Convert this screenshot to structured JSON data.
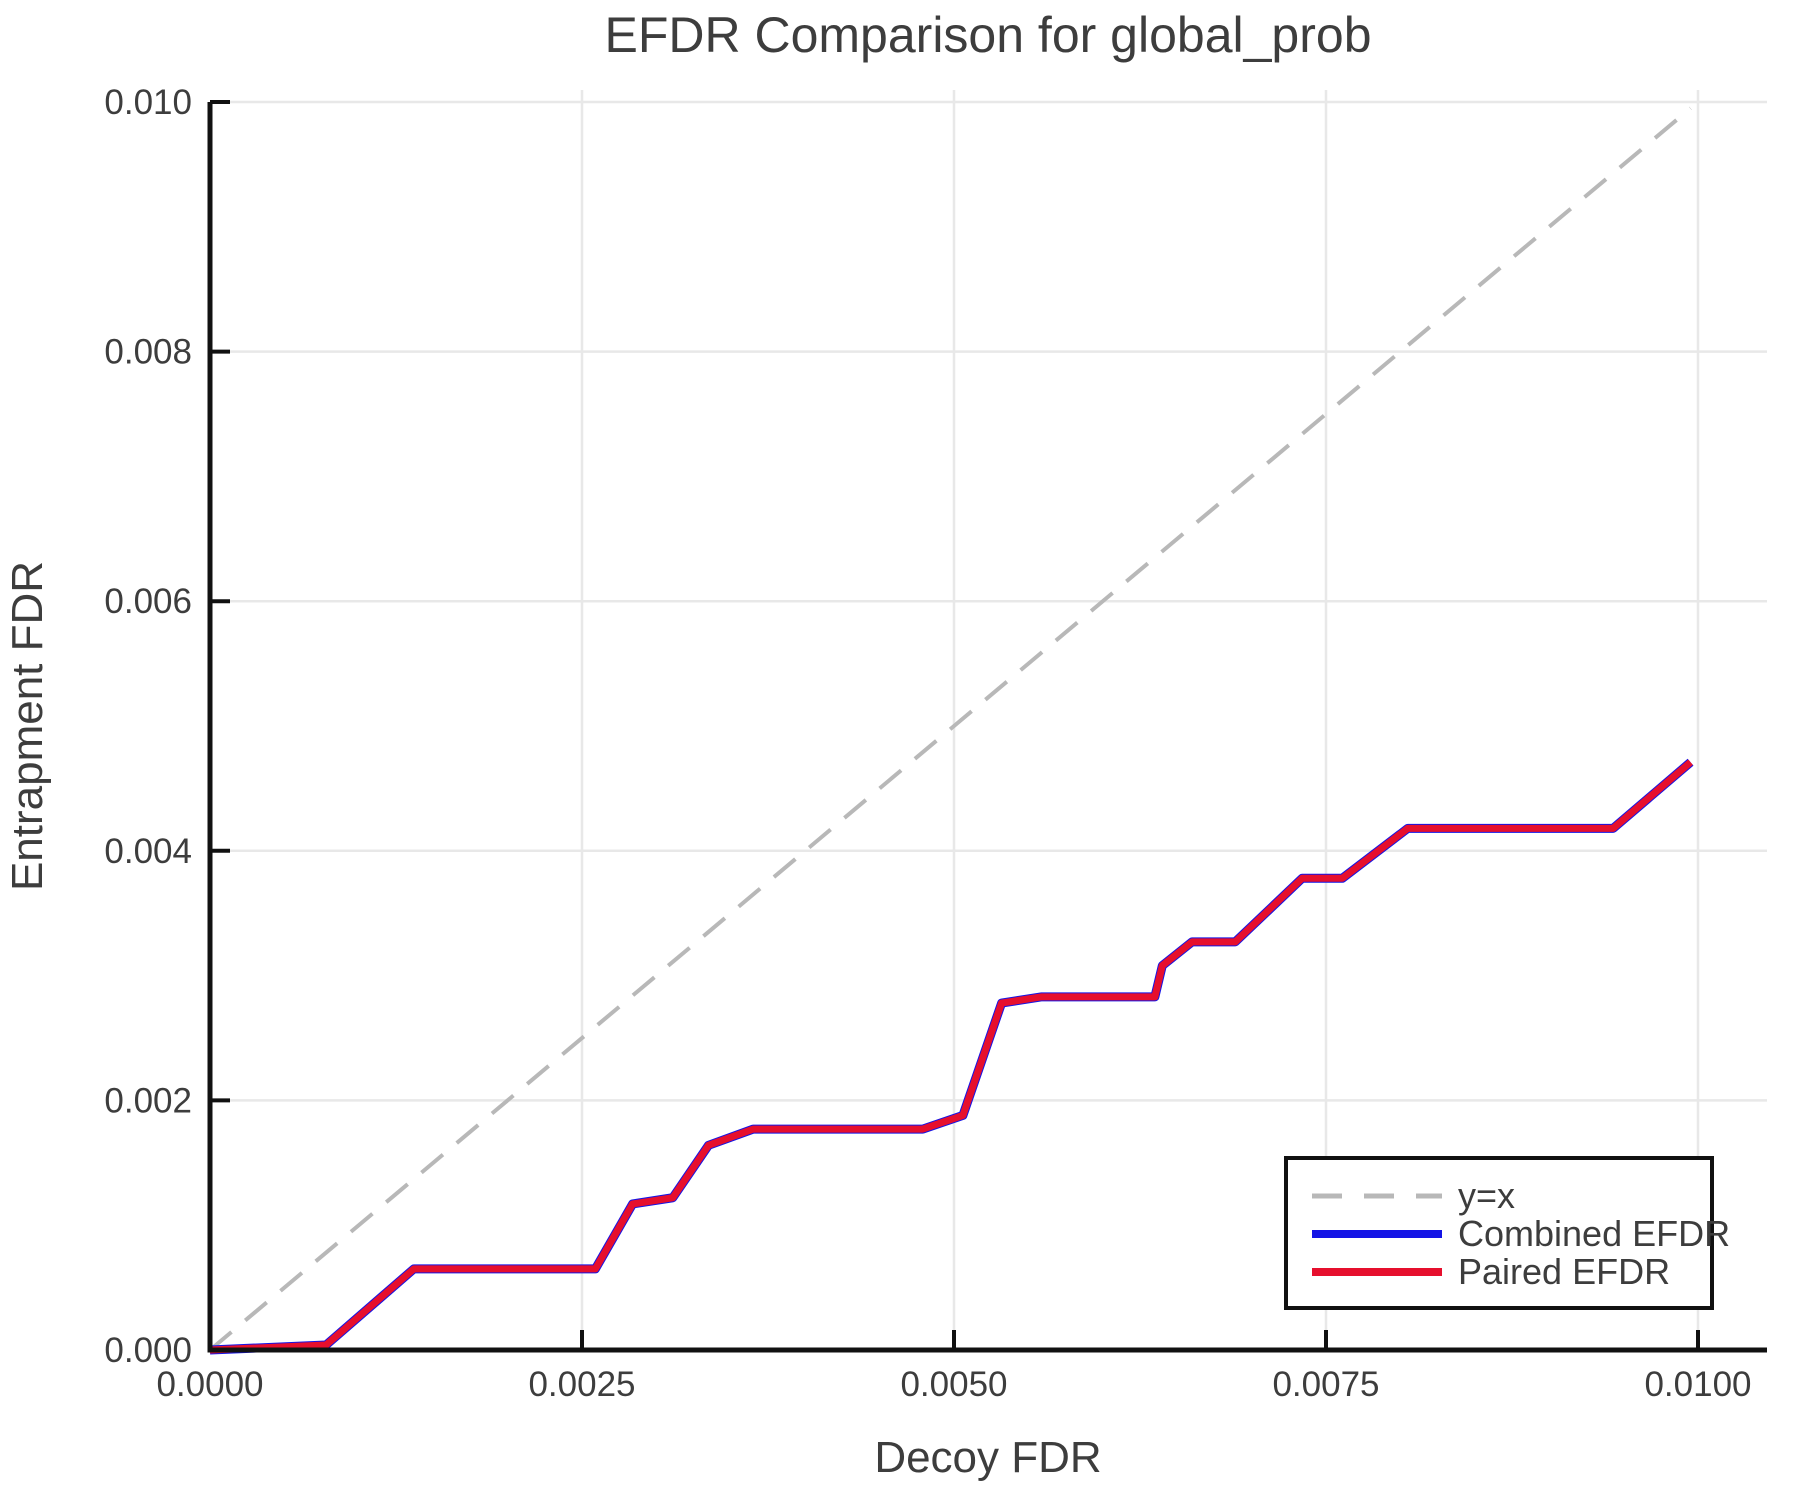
{
  "chart_data": {
    "type": "line",
    "title": "EFDR Comparison for global_prob",
    "xlabel": "Decoy FDR",
    "ylabel": "Entrapment FDR",
    "xlim": [
      0.0,
      0.01047
    ],
    "ylim": [
      0.0,
      0.01
    ],
    "grid": true,
    "legend_position": "lower right",
    "x_ticks": [
      0.0,
      0.0025,
      0.005,
      0.0075,
      0.01
    ],
    "x_tick_labels": [
      "0.0000",
      "0.0025",
      "0.0050",
      "0.0075",
      "0.0100"
    ],
    "y_ticks": [
      0.0,
      0.002,
      0.004,
      0.006,
      0.008,
      0.01
    ],
    "y_tick_labels": [
      "0.000",
      "0.002",
      "0.004",
      "0.006",
      "0.008",
      "0.010"
    ],
    "colors": {
      "identity": "#b8b8b8",
      "combined": "#1414e6",
      "paired": "#e60f2d",
      "grid": "#e8e8e8",
      "axis": "#111111",
      "text": "#3d3d3d"
    },
    "series": [
      {
        "name": "y=x",
        "style": "dashed",
        "color_key": "identity",
        "points": [
          [
            0.0,
            0.0
          ],
          [
            0.00995,
            0.00995
          ]
        ]
      },
      {
        "name": "Combined EFDR",
        "style": "solid",
        "color_key": "combined",
        "points": [
          [
            0.0,
            0.0
          ],
          [
            0.00078,
            4e-05
          ],
          [
            0.00137,
            0.00065
          ],
          [
            0.00259,
            0.00065
          ],
          [
            0.00284,
            0.00117
          ],
          [
            0.00311,
            0.00122
          ],
          [
            0.00335,
            0.00164
          ],
          [
            0.00365,
            0.00177
          ],
          [
            0.00479,
            0.00177
          ],
          [
            0.00506,
            0.00188
          ],
          [
            0.00532,
            0.00278
          ],
          [
            0.00559,
            0.00283
          ],
          [
            0.00635,
            0.00283
          ],
          [
            0.0064,
            0.00308
          ],
          [
            0.0066,
            0.00327
          ],
          [
            0.00689,
            0.00327
          ],
          [
            0.00734,
            0.00378
          ],
          [
            0.00761,
            0.00378
          ],
          [
            0.00805,
            0.00418
          ],
          [
            0.00943,
            0.00418
          ],
          [
            0.00995,
            0.00471
          ]
        ]
      },
      {
        "name": "Paired EFDR",
        "style": "solid",
        "color_key": "paired",
        "points": [
          [
            0.0,
            0.0
          ],
          [
            0.00078,
            4e-05
          ],
          [
            0.00137,
            0.00065
          ],
          [
            0.00259,
            0.00065
          ],
          [
            0.00284,
            0.00117
          ],
          [
            0.00311,
            0.00122
          ],
          [
            0.00335,
            0.00164
          ],
          [
            0.00365,
            0.00177
          ],
          [
            0.00479,
            0.00177
          ],
          [
            0.00506,
            0.00188
          ],
          [
            0.00532,
            0.00278
          ],
          [
            0.00559,
            0.00283
          ],
          [
            0.00635,
            0.00283
          ],
          [
            0.0064,
            0.00308
          ],
          [
            0.0066,
            0.00327
          ],
          [
            0.00689,
            0.00327
          ],
          [
            0.00734,
            0.00378
          ],
          [
            0.00761,
            0.00378
          ],
          [
            0.00805,
            0.00418
          ],
          [
            0.00943,
            0.00418
          ],
          [
            0.00995,
            0.00471
          ]
        ]
      }
    ],
    "legend_entries": [
      "y=x",
      "Combined EFDR",
      "Paired EFDR"
    ],
    "note": "Combined EFDR and Paired EFDR curves overlap exactly; red (Paired) is drawn on top of blue (Combined)."
  }
}
